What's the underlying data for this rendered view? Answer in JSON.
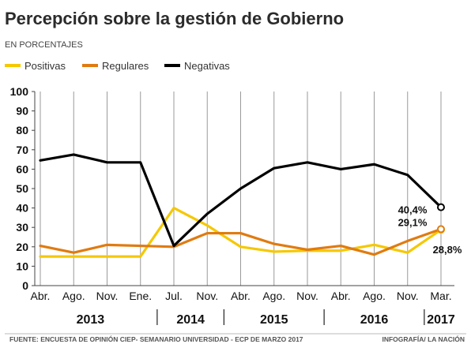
{
  "header": {
    "title": "Percepción sobre la gestión de Gobierno",
    "subtitle": "EN PORCENTAJES"
  },
  "footer": {
    "source": "FUENTE: ENCUESTA DE OPINIÓN CIEP- SEMANARIO UNIVERSIDAD - ECP DE MARZO 2017",
    "credit": "INFOGRAFÍA/ LA NACIÓN"
  },
  "chart_data": {
    "type": "line",
    "title": "Percepción sobre la gestión de Gobierno",
    "subtitle": "EN PORCENTAJES",
    "xlabel": "",
    "ylabel": "",
    "ylim": [
      0,
      100
    ],
    "yticks": [
      0,
      10,
      20,
      30,
      40,
      50,
      60,
      70,
      80,
      90,
      100
    ],
    "grid": "vertical",
    "legend_position": "top-left",
    "categories": [
      "Abr.",
      "Ago.",
      "Nov.",
      "Ene.",
      "Jul.",
      "Nov.",
      "Abr.",
      "Ago.",
      "Nov.",
      "Abr.",
      "Ago.",
      "Nov.",
      "Mar."
    ],
    "year_groups": [
      {
        "label": "2013",
        "start": 0,
        "end": 3
      },
      {
        "label": "2014",
        "start": 4,
        "end": 5
      },
      {
        "label": "2015",
        "start": 6,
        "end": 8
      },
      {
        "label": "2016",
        "start": 9,
        "end": 11
      },
      {
        "label": "2017",
        "start": 12,
        "end": 12
      }
    ],
    "series": [
      {
        "name": "Positivas",
        "color": "#f5c800",
        "values": [
          15,
          15,
          15,
          15,
          40,
          31,
          20,
          17.5,
          18,
          18,
          21,
          17,
          28.8
        ]
      },
      {
        "name": "Regulares",
        "color": "#e07b10",
        "values": [
          20.5,
          17,
          21,
          20.5,
          20,
          27,
          27,
          21.5,
          18.5,
          20.5,
          16,
          23,
          29.1
        ]
      },
      {
        "name": "Negativas",
        "color": "#000000",
        "values": [
          64.5,
          67.5,
          63.5,
          63.5,
          20.5,
          37,
          50,
          60.5,
          63.5,
          60,
          62.5,
          57,
          40.4
        ]
      }
    ],
    "annotations": [
      {
        "series": "Negativas",
        "index": 12,
        "text": "40,4%"
      },
      {
        "series": "Regulares",
        "index": 12,
        "text": "29,1%"
      },
      {
        "series": "Positivas",
        "index": 12,
        "text": "28,8%"
      }
    ]
  }
}
